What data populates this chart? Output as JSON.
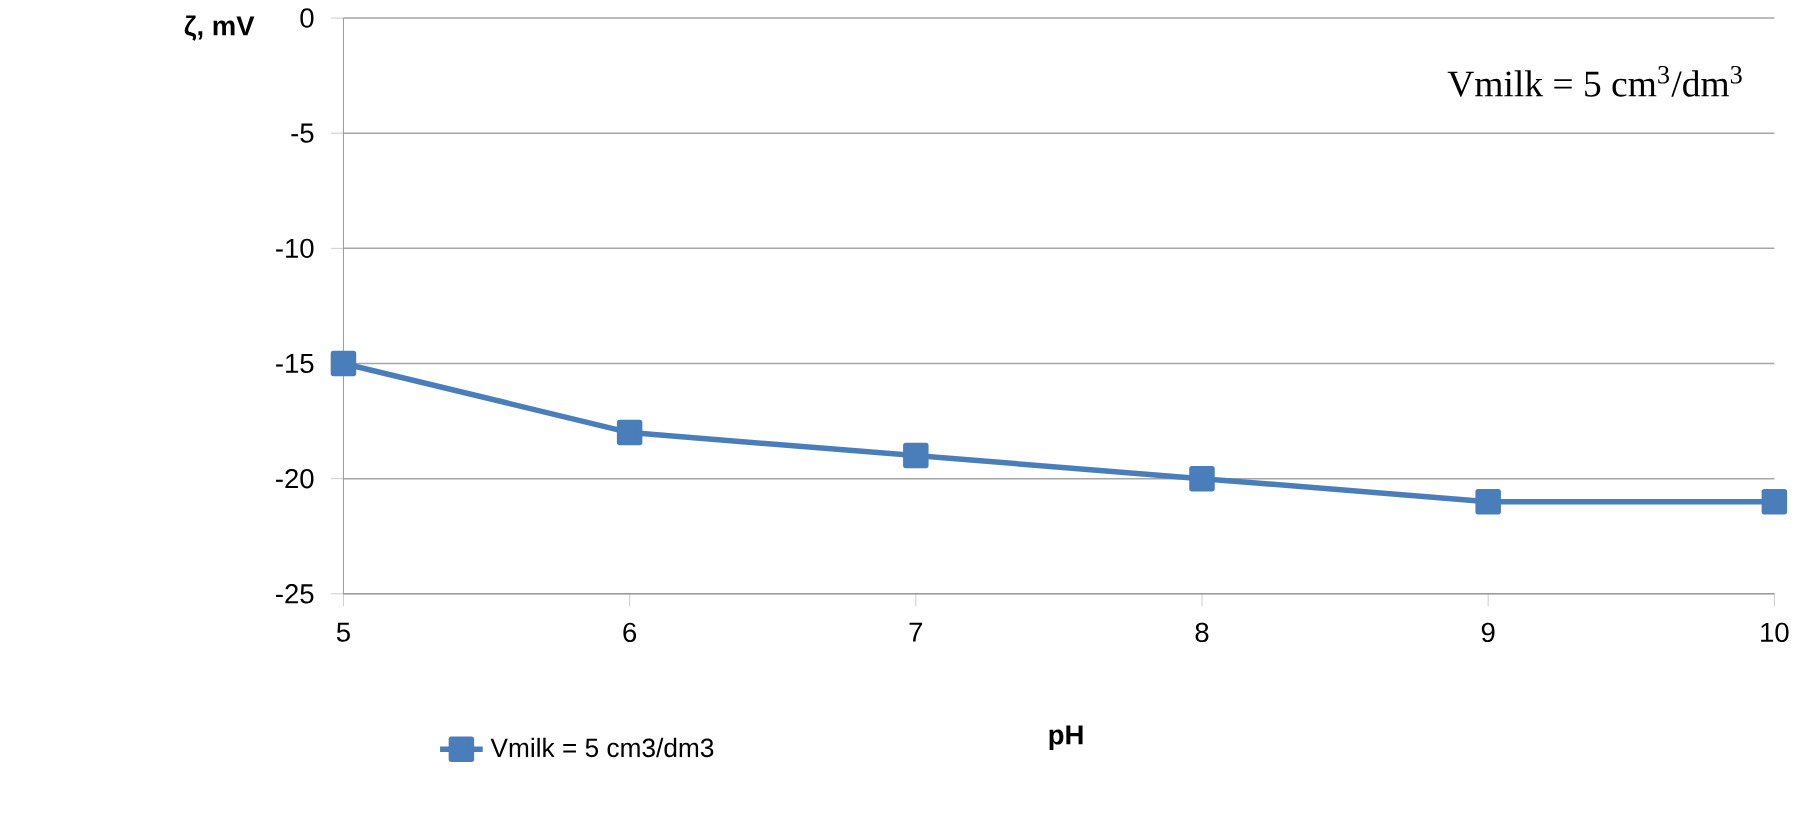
{
  "chart_data": {
    "type": "line",
    "xlabel": "pH",
    "ylabel": "ζ, mV",
    "annotations": [
      "Vmilk = 5 cm$^{3}$/dm$^{3}$"
    ],
    "x": [
      5,
      6,
      7,
      8,
      9,
      10
    ],
    "series": [
      {
        "name": "Vmilk = 5 cm3/dm3",
        "color": "#4a7ebb",
        "values": [
          -15,
          -18,
          -19,
          -20,
          -21,
          -21
        ]
      }
    ],
    "xlim": [
      5,
      10
    ],
    "ylim": [
      -25,
      0
    ],
    "xticks": [
      5,
      6,
      7,
      8,
      9,
      10
    ],
    "yticks": [
      -25,
      -20,
      -15,
      -10,
      -5,
      0
    ],
    "grid": "y",
    "legend": "bottom left",
    "marker": "square",
    "line_style": "solid"
  }
}
